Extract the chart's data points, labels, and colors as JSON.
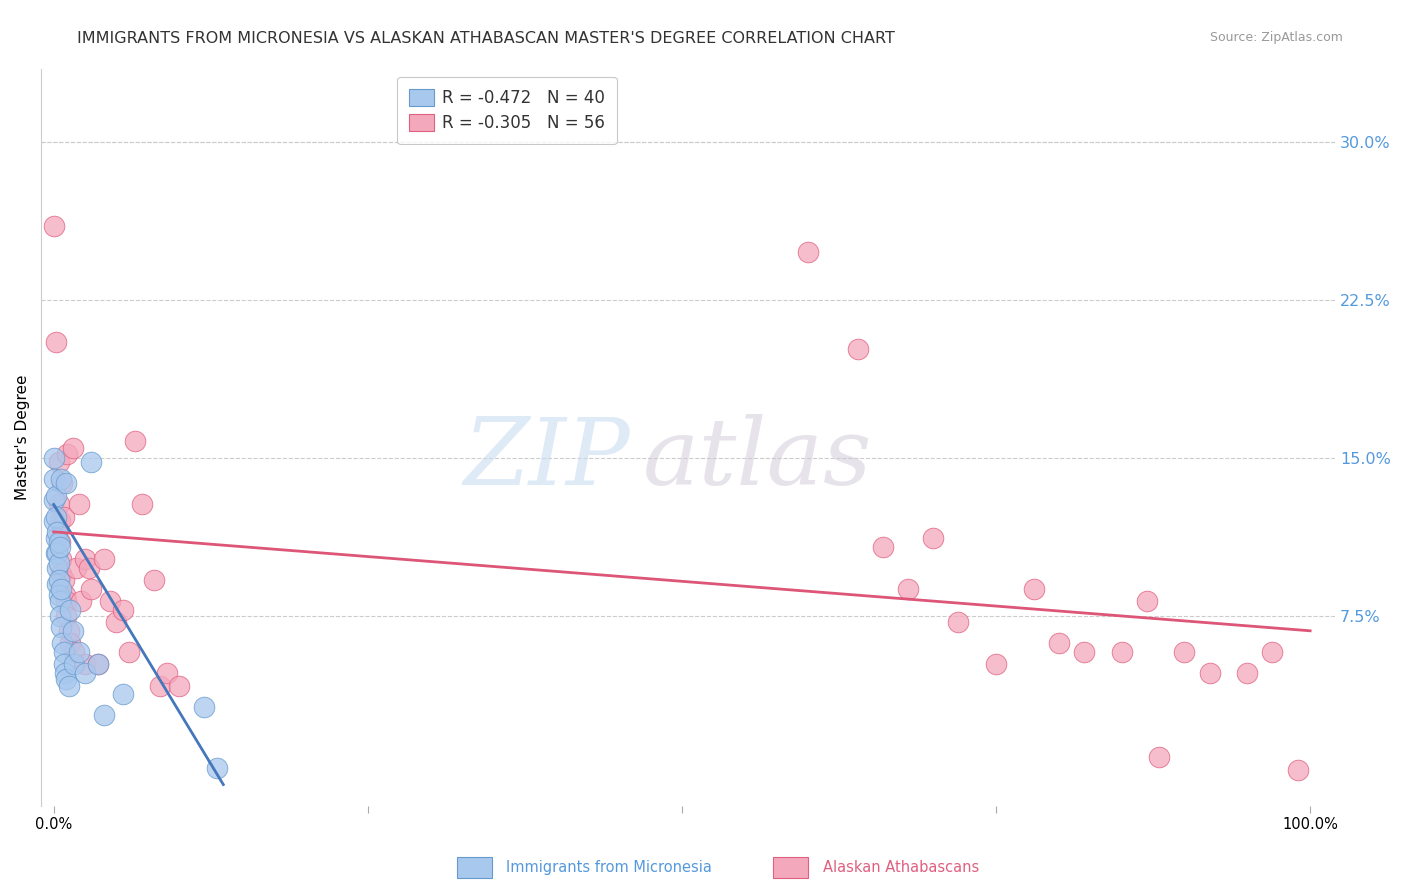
{
  "title": "IMMIGRANTS FROM MICRONESIA VS ALASKAN ATHABASCAN MASTER'S DEGREE CORRELATION CHART",
  "source": "Source: ZipAtlas.com",
  "ylabel": "Master's Degree",
  "right_yticks": [
    "30.0%",
    "22.5%",
    "15.0%",
    "7.5%"
  ],
  "right_ytick_vals": [
    0.3,
    0.225,
    0.15,
    0.075
  ],
  "legend1_label": "R = -0.472   N = 40",
  "legend2_label": "R = -0.305   N = 56",
  "blue_fill": "#A8C8EE",
  "blue_edge": "#6699CC",
  "pink_fill": "#F4A8BC",
  "pink_edge": "#E06080",
  "blue_line_color": "#4477BB",
  "pink_line_color": "#DD5577",
  "blue_scatter": [
    [
      0.0,
      0.15
    ],
    [
      0.0,
      0.14
    ],
    [
      0.0,
      0.13
    ],
    [
      0.0,
      0.12
    ],
    [
      0.002,
      0.132
    ],
    [
      0.002,
      0.122
    ],
    [
      0.002,
      0.112
    ],
    [
      0.002,
      0.105
    ],
    [
      0.003,
      0.115
    ],
    [
      0.003,
      0.105
    ],
    [
      0.003,
      0.098
    ],
    [
      0.003,
      0.09
    ],
    [
      0.004,
      0.11
    ],
    [
      0.004,
      0.1
    ],
    [
      0.004,
      0.092
    ],
    [
      0.004,
      0.085
    ],
    [
      0.005,
      0.108
    ],
    [
      0.005,
      0.082
    ],
    [
      0.005,
      0.075
    ],
    [
      0.006,
      0.14
    ],
    [
      0.006,
      0.088
    ],
    [
      0.006,
      0.07
    ],
    [
      0.007,
      0.062
    ],
    [
      0.008,
      0.058
    ],
    [
      0.008,
      0.052
    ],
    [
      0.009,
      0.048
    ],
    [
      0.01,
      0.138
    ],
    [
      0.01,
      0.045
    ],
    [
      0.012,
      0.042
    ],
    [
      0.013,
      0.078
    ],
    [
      0.015,
      0.068
    ],
    [
      0.016,
      0.052
    ],
    [
      0.02,
      0.058
    ],
    [
      0.025,
      0.048
    ],
    [
      0.03,
      0.148
    ],
    [
      0.035,
      0.052
    ],
    [
      0.04,
      0.028
    ],
    [
      0.055,
      0.038
    ],
    [
      0.12,
      0.032
    ],
    [
      0.13,
      0.003
    ]
  ],
  "pink_scatter": [
    [
      0.0,
      0.26
    ],
    [
      0.002,
      0.205
    ],
    [
      0.004,
      0.148
    ],
    [
      0.004,
      0.128
    ],
    [
      0.005,
      0.12
    ],
    [
      0.005,
      0.11
    ],
    [
      0.006,
      0.102
    ],
    [
      0.006,
      0.095
    ],
    [
      0.007,
      0.138
    ],
    [
      0.008,
      0.122
    ],
    [
      0.008,
      0.092
    ],
    [
      0.009,
      0.085
    ],
    [
      0.01,
      0.082
    ],
    [
      0.01,
      0.075
    ],
    [
      0.011,
      0.152
    ],
    [
      0.012,
      0.068
    ],
    [
      0.013,
      0.062
    ],
    [
      0.015,
      0.155
    ],
    [
      0.016,
      0.058
    ],
    [
      0.018,
      0.098
    ],
    [
      0.02,
      0.128
    ],
    [
      0.022,
      0.082
    ],
    [
      0.025,
      0.102
    ],
    [
      0.025,
      0.052
    ],
    [
      0.028,
      0.098
    ],
    [
      0.03,
      0.088
    ],
    [
      0.035,
      0.052
    ],
    [
      0.04,
      0.102
    ],
    [
      0.045,
      0.082
    ],
    [
      0.05,
      0.072
    ],
    [
      0.055,
      0.078
    ],
    [
      0.06,
      0.058
    ],
    [
      0.065,
      0.158
    ],
    [
      0.07,
      0.128
    ],
    [
      0.08,
      0.092
    ],
    [
      0.085,
      0.042
    ],
    [
      0.09,
      0.048
    ],
    [
      0.1,
      0.042
    ],
    [
      0.6,
      0.248
    ],
    [
      0.64,
      0.202
    ],
    [
      0.66,
      0.108
    ],
    [
      0.68,
      0.088
    ],
    [
      0.7,
      0.112
    ],
    [
      0.72,
      0.072
    ],
    [
      0.75,
      0.052
    ],
    [
      0.78,
      0.088
    ],
    [
      0.8,
      0.062
    ],
    [
      0.82,
      0.058
    ],
    [
      0.85,
      0.058
    ],
    [
      0.87,
      0.082
    ],
    [
      0.88,
      0.008
    ],
    [
      0.9,
      0.058
    ],
    [
      0.92,
      0.048
    ],
    [
      0.95,
      0.048
    ],
    [
      0.97,
      0.058
    ],
    [
      0.99,
      0.002
    ]
  ],
  "blue_line_x": [
    0.0,
    0.135
  ],
  "blue_line_y": [
    0.128,
    -0.005
  ],
  "pink_line_x": [
    0.0,
    1.0
  ],
  "pink_line_y": [
    0.115,
    0.068
  ],
  "xlim": [
    -0.01,
    1.02
  ],
  "ylim": [
    -0.015,
    0.335
  ],
  "background_color": "#FFFFFF",
  "watermark_zip": "ZIP",
  "watermark_atlas": "atlas",
  "title_fontsize": 11.5,
  "source_fontsize": 9,
  "legend_fontsize": 12
}
